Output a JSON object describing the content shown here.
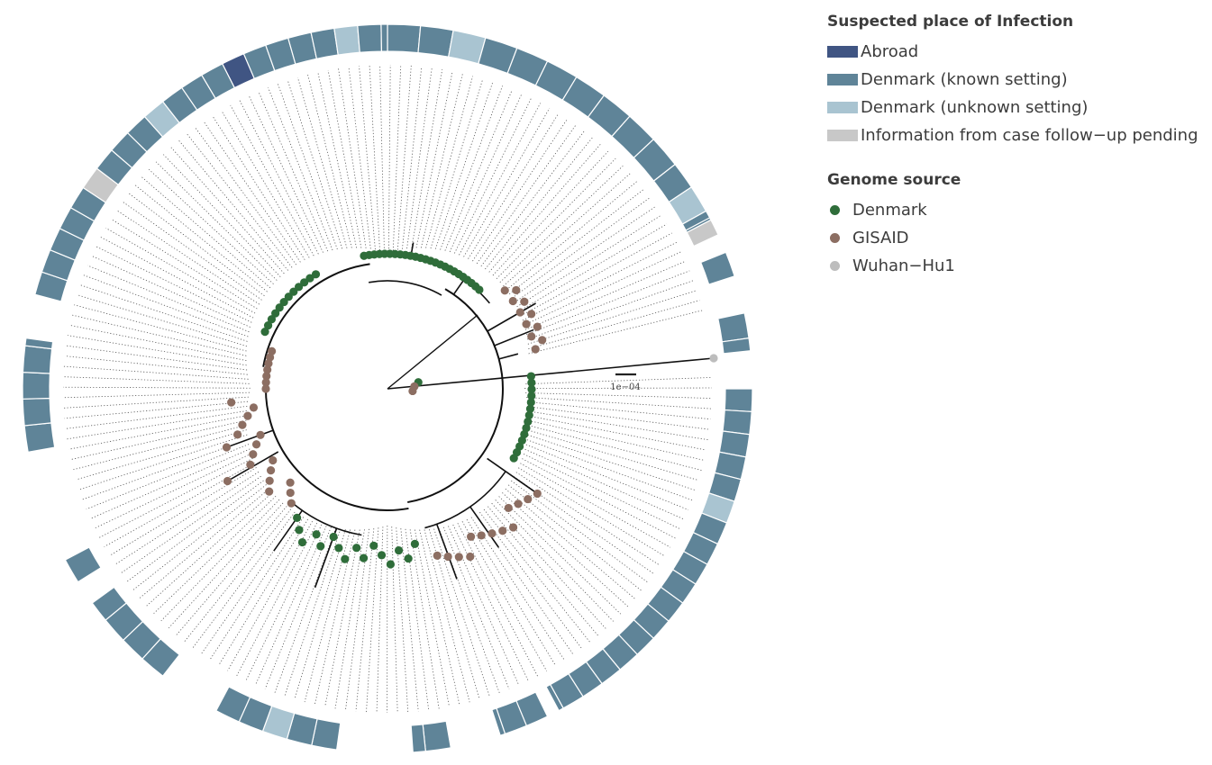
{
  "legend": {
    "place_title": "Suspected place of Infection",
    "place_items": [
      {
        "label": "Abroad",
        "color": "#405583"
      },
      {
        "label": "Denmark (known setting)",
        "color": "#5f8498"
      },
      {
        "label": "Denmark (unknown setting)",
        "color": "#a9c4d1"
      },
      {
        "label": "Information from case follow−up pending",
        "color": "#c8c8c8"
      }
    ],
    "source_title": "Genome source",
    "source_items": [
      {
        "label": "Denmark",
        "color": "#2f6d3a"
      },
      {
        "label": "GISAID",
        "color": "#8c6e62"
      },
      {
        "label": "Wuhan−Hu1",
        "color": "#bdbdbd"
      }
    ]
  },
  "scale_bar_label": "1e−04",
  "ring_colors": {
    "A": "#405583",
    "K": "#5f8498",
    "U": "#a9c4d1",
    "P": "#c8c8c8"
  },
  "ring_blocks": "KKUKKKKKKKKKPKUKKKKKKKKKUKKKKKKKKKKKKKKKKKKKUKKKKKKKKKKKKKKKKKPKKKUKKKAKKKKUKKKKKKKKKKKKKUKKKAKKKKUPUK",
  "node_colors": {
    "denmark": "#2f6d3a",
    "gisaid": "#8c6e62",
    "wuhan": "#bdbdbd"
  }
}
